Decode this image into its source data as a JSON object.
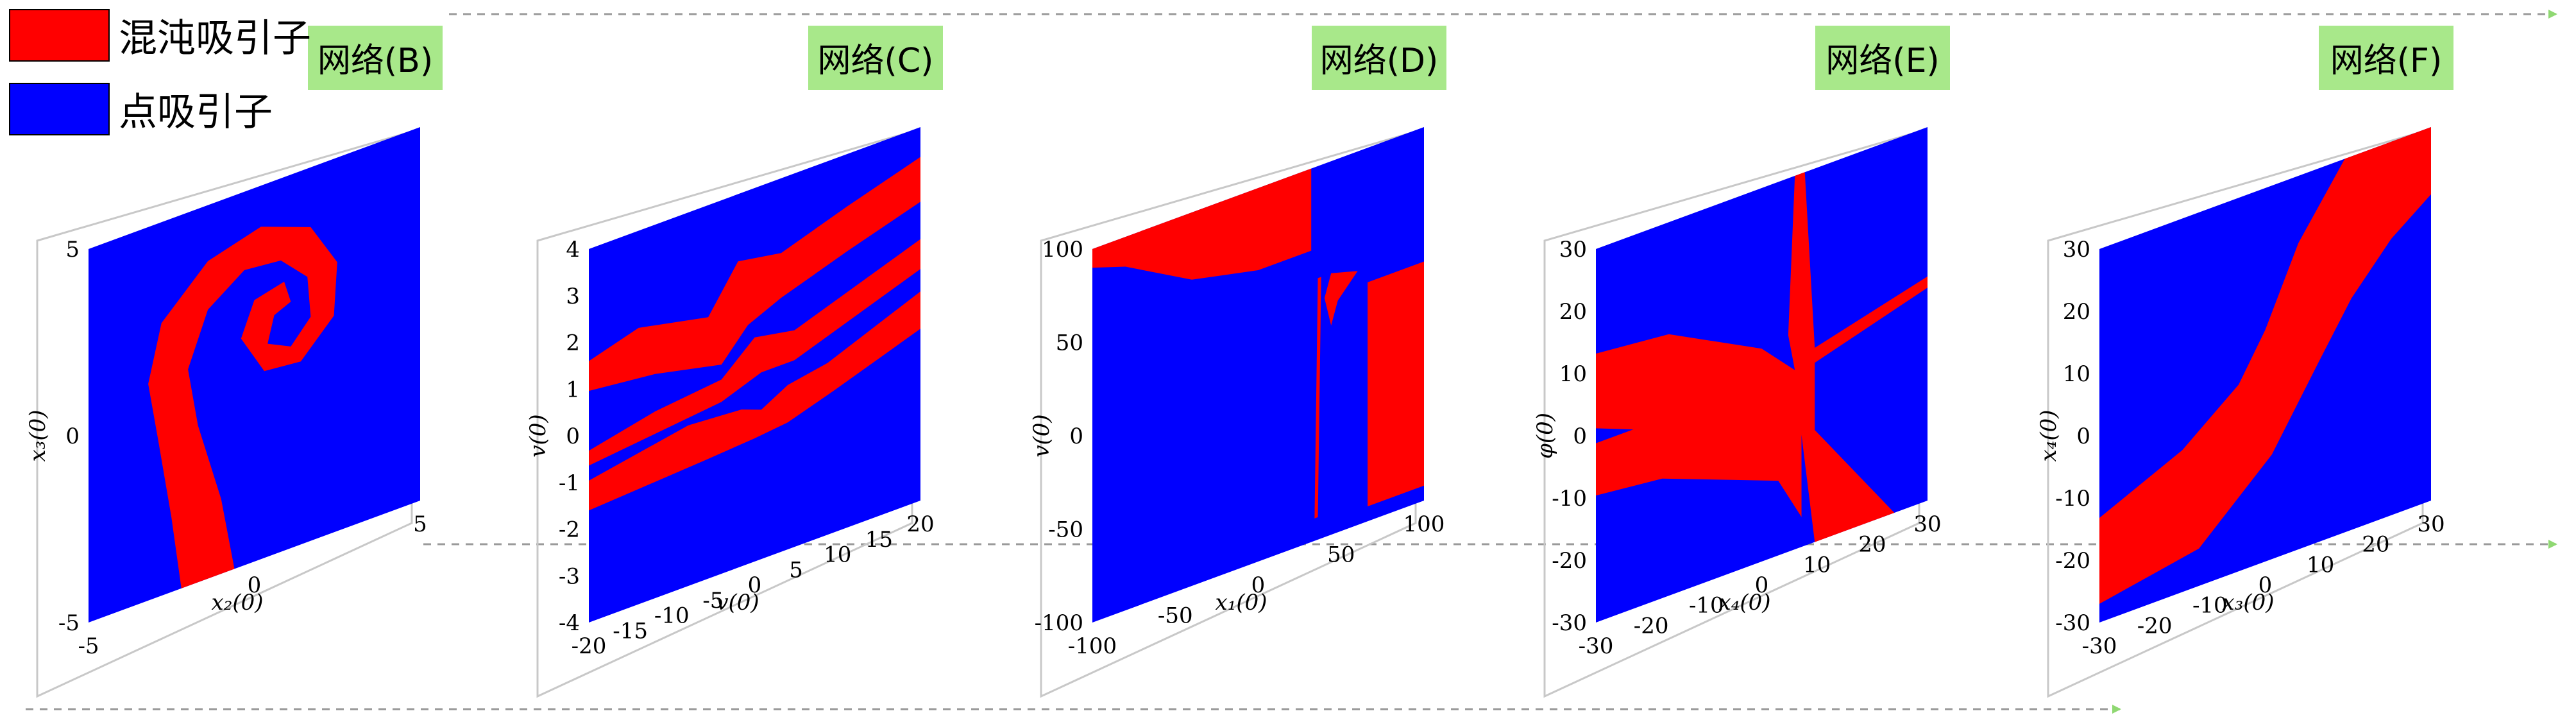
{
  "legend": [
    {
      "label": "混沌吸引子",
      "color": "#ff0000"
    },
    {
      "label": "点吸引子",
      "color": "#0000ff"
    }
  ],
  "colors": {
    "chaotic": "#ff0000",
    "point": "#0000ff",
    "tag_bg": "#a8e88a",
    "arrow": "#8fd872",
    "frame": "#c8c8c8"
  },
  "chart_data": [
    {
      "type": "heatmap",
      "tag": "网络(B)",
      "xlabel": "x₂(0)",
      "ylabel": "x₃(0)",
      "xlim": [
        -5,
        5
      ],
      "ylim": [
        -5,
        5
      ],
      "xticks": [
        "-5",
        "0",
        "5"
      ],
      "yticks": [
        "-5",
        "0",
        "5"
      ],
      "note": "spiral-shaped basin of chaotic attractor on point-attractor background"
    },
    {
      "type": "heatmap",
      "tag": "网络(C)",
      "xlabel": "v(0)",
      "ylabel": "v(0)",
      "xlim": [
        -20,
        20
      ],
      "ylim": [
        -4,
        4
      ],
      "xticks": [
        "-20",
        "-15",
        "-10",
        "-5",
        "0",
        "5",
        "10",
        "15",
        "20"
      ],
      "yticks": [
        "-4",
        "-3",
        "-2",
        "-1",
        "0",
        "1",
        "2",
        "3",
        "4"
      ],
      "note": "interleaved horizontal bands of chaotic basin"
    },
    {
      "type": "heatmap",
      "tag": "网络(D)",
      "xlabel": "x₁(0)",
      "ylabel": "v(0)",
      "xlim": [
        -100,
        100
      ],
      "ylim": [
        -100,
        100
      ],
      "xticks": [
        "-100",
        "-50",
        "0",
        "50",
        "100"
      ],
      "yticks": [
        "-100",
        "-50",
        "0",
        "50",
        "100"
      ],
      "note": "chaotic basin in upper-left and lower-right blocks"
    },
    {
      "type": "heatmap",
      "tag": "网络(E)",
      "xlabel": "x₄(0)",
      "ylabel": "φ(0)",
      "xlim": [
        -30,
        30
      ],
      "ylim": [
        -30,
        30
      ],
      "xticks": [
        "-30",
        "-20",
        "-10",
        "0",
        "10",
        "20",
        "30"
      ],
      "yticks": [
        "-30",
        "-20",
        "-10",
        "0",
        "10",
        "20",
        "30"
      ],
      "note": "chaotic basin forming X-shaped wedges"
    },
    {
      "type": "heatmap",
      "tag": "网络(F)",
      "xlabel": "x₃(0)",
      "ylabel": "x₄(0)",
      "xlim": [
        -30,
        30
      ],
      "ylim": [
        -30,
        30
      ],
      "xticks": [
        "-30",
        "-20",
        "-10",
        "0",
        "10",
        "20",
        "30"
      ],
      "yticks": [
        "-30",
        "-20",
        "-10",
        "0",
        "10",
        "20",
        "30"
      ],
      "note": "diagonal S-shaped chaotic band"
    }
  ]
}
